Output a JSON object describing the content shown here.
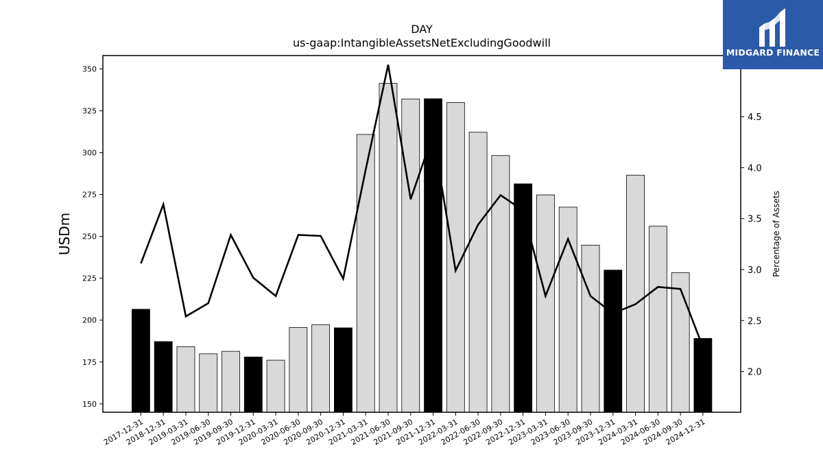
{
  "chart_data": {
    "type": "bar",
    "title": "DAY",
    "subtitle": "us-gaap:IntangibleAssetsNetExcludingGoodwill",
    "xlabel": "",
    "ylabel": "USDm",
    "y2label": "Percentage of Assets",
    "categories": [
      "2017-12-31",
      "2018-12-31",
      "2019-03-31",
      "2019-06-30",
      "2019-09-30",
      "2019-12-31",
      "2020-03-31",
      "2020-06-30",
      "2020-09-30",
      "2020-12-31",
      "2021-03-31",
      "2021-06-30",
      "2021-09-30",
      "2021-12-31",
      "2022-03-31",
      "2022-06-30",
      "2022-09-30",
      "2022-12-31",
      "2023-03-31",
      "2023-06-30",
      "2023-09-30",
      "2023-12-31",
      "2024-03-31",
      "2024-06-30",
      "2024-09-30",
      "2024-12-31"
    ],
    "series": [
      {
        "kind": "bar",
        "axis": "left",
        "values": [
          206.5,
          187.2,
          184.1,
          179.9,
          181.4,
          178.0,
          176.1,
          195.6,
          197.3,
          195.4,
          310.9,
          341.4,
          332.1,
          332.2,
          329.9,
          312.2,
          298.3,
          281.4,
          274.8,
          267.5,
          244.8,
          229.9,
          286.6,
          256.1,
          228.3,
          189.1
        ],
        "annual_flags": [
          true,
          true,
          false,
          false,
          false,
          true,
          false,
          false,
          false,
          true,
          false,
          false,
          false,
          true,
          false,
          false,
          false,
          true,
          false,
          false,
          false,
          true,
          false,
          false,
          false,
          true
        ]
      },
      {
        "kind": "line",
        "axis": "right",
        "values": [
          3.06,
          3.64,
          2.54,
          2.67,
          3.34,
          2.92,
          2.74,
          3.34,
          3.33,
          2.91,
          3.98,
          5.01,
          3.69,
          4.33,
          2.99,
          3.44,
          3.73,
          3.58,
          2.74,
          3.3,
          2.74,
          2.57,
          2.66,
          2.83,
          2.81,
          2.24
        ]
      }
    ],
    "ylim": [
      145,
      358
    ],
    "yticks": [
      150,
      175,
      200,
      225,
      250,
      275,
      300,
      325,
      350
    ],
    "y2lim": [
      1.6,
      5.1
    ],
    "y2ticks": [
      "2.0",
      "2.5",
      "3.0",
      "3.5",
      "4.0",
      "4.5",
      "5.0"
    ],
    "grid": false,
    "colors": {
      "annual_bar": "#000000",
      "quarter_bar": "#d9d9d9",
      "bar_edge": "#000000",
      "line": "#000000"
    }
  },
  "logo": {
    "text": "MIDGARD FINANCE",
    "background": "#2b5aa8"
  }
}
